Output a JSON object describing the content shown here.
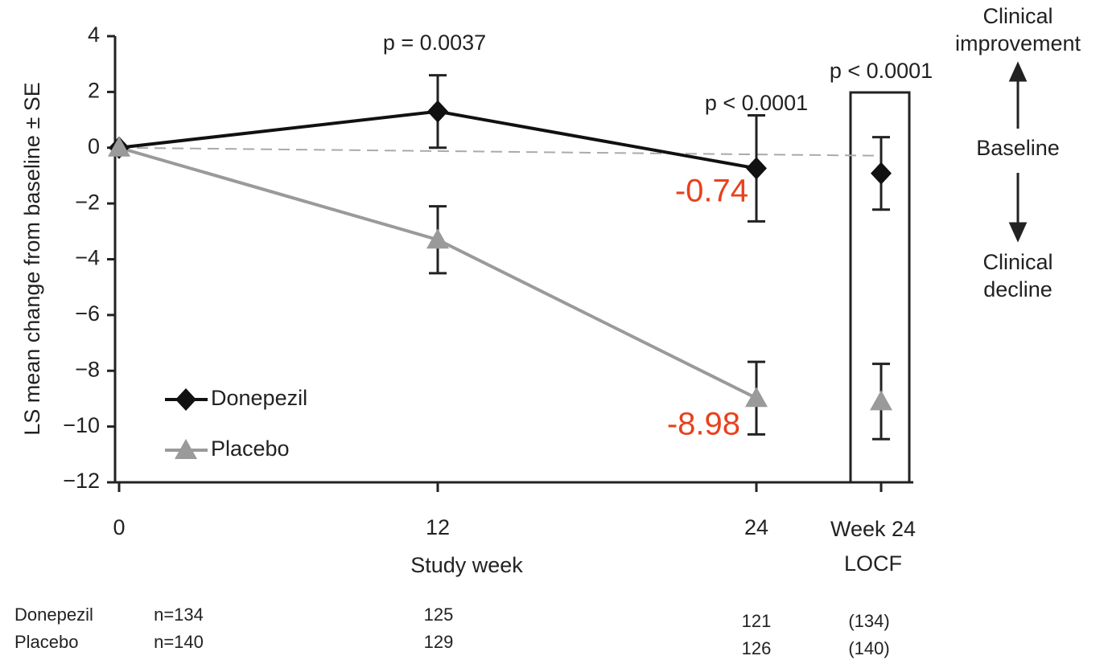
{
  "chart_data": {
    "type": "line",
    "y_label": "LS mean change from baseline ± SE",
    "x_label": "Study week",
    "x": [
      0,
      12,
      24
    ],
    "xlim": [
      0,
      24
    ],
    "xticks": [
      0,
      12,
      24
    ],
    "locf_label": [
      "Week 24",
      "LOCF"
    ],
    "ylim": [
      -12,
      4
    ],
    "yticks": [
      {
        "value": -12,
        "label": "−12"
      },
      {
        "value": -10,
        "label": "−10"
      },
      {
        "value": -8,
        "label": "−8"
      },
      {
        "value": -6,
        "label": "−6"
      },
      {
        "value": -4,
        "label": "−4"
      },
      {
        "value": -2,
        "label": "−2"
      },
      0,
      2,
      4
    ],
    "series": [
      {
        "name": "Donepezil",
        "color": "#111111",
        "marker": "diamond",
        "values": [
          0,
          1.3,
          -0.74
        ],
        "errors": [
          null,
          1.3,
          1.9
        ],
        "locf": {
          "value": -0.92,
          "error": 1.3
        }
      },
      {
        "name": "Placebo",
        "color": "#9a9a9a",
        "marker": "triangle",
        "values": [
          0,
          -3.3,
          -8.98
        ],
        "errors": [
          null,
          1.2,
          1.3
        ],
        "locf": {
          "value": -9.1,
          "error": 1.35
        }
      }
    ],
    "p_values": [
      "p = 0.0037",
      "p < 0.0001",
      "p < 0.0001"
    ],
    "side_labels": {
      "up": [
        "Clinical",
        "improvement"
      ],
      "mid": "Baseline",
      "down": [
        "Clinical",
        "decline"
      ]
    },
    "n_table": {
      "rows": [
        {
          "label": "Donepezil",
          "cells": [
            "n=134",
            "125",
            "121",
            "(134)"
          ]
        },
        {
          "label": "Placebo",
          "cells": [
            "n=140",
            "129",
            "126",
            "(140)"
          ]
        }
      ]
    }
  }
}
